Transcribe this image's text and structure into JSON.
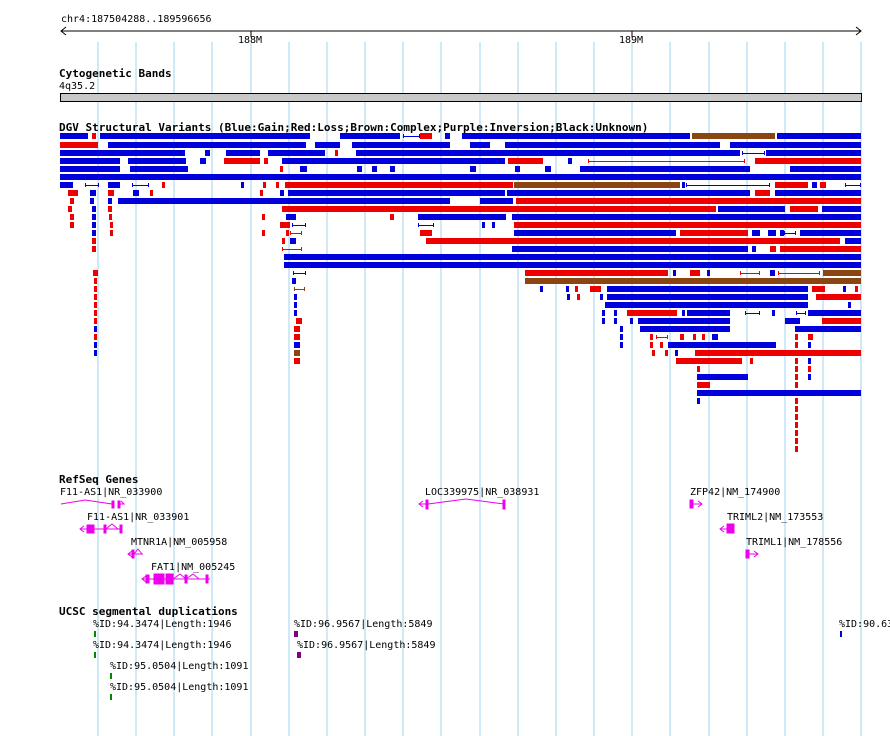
{
  "ruler": {
    "region": "chr4:187504288..189596656",
    "ticks": [
      "188M",
      "189M"
    ],
    "range": [
      187504288,
      189596656
    ]
  },
  "tracks": {
    "cytoband": {
      "title": "Cytogenetic Bands",
      "band": "4q35.2"
    },
    "dgv": {
      "title": "DGV Structural Variants (Blue:Gain;Red:Loss;Brown:Complex;Purple:Inversion;Black:Unknown)"
    },
    "refseq": {
      "title": "RefSeq Genes",
      "genes": [
        {
          "label": "F11-AS1|NR_033900",
          "strand": "+"
        },
        {
          "label": "F11-AS1|NR_033901",
          "strand": "-"
        },
        {
          "label": "MTNR1A|NM_005958",
          "strand": "-"
        },
        {
          "label": "FAT1|NM_005245",
          "strand": "-"
        },
        {
          "label": "LOC339975|NR_038931",
          "strand": "-"
        },
        {
          "label": "ZFP42|NM_174900",
          "strand": "+"
        },
        {
          "label": "TRIML2|NM_173553",
          "strand": "-"
        },
        {
          "label": "TRIML1|NM_178556",
          "strand": "+"
        }
      ]
    },
    "segdup": {
      "title": "UCSC segmental duplications",
      "items": [
        {
          "label": "%ID:94.3474|Length:1946"
        },
        {
          "label": "%ID:94.3474|Length:1946"
        },
        {
          "label": "%ID:95.0504|Length:1091"
        },
        {
          "label": "%ID:95.0504|Length:1091"
        },
        {
          "label": "%ID:96.9567|Length:5849"
        },
        {
          "label": "%ID:96.9567|Length:5849"
        },
        {
          "label": "%ID:90.63"
        }
      ]
    }
  },
  "colors": {
    "gain": "#0000dd",
    "loss": "#ee0000",
    "complex": "#8b4513",
    "inversion": "#800080",
    "unknown": "#000000",
    "gene": "#ee00ee",
    "segdup_green": "#008800",
    "segdup_purple": "#800080",
    "segdup_blue": "#0000dd",
    "grid": "#9fd4ec",
    "cytoband": "#c8c8c8"
  }
}
